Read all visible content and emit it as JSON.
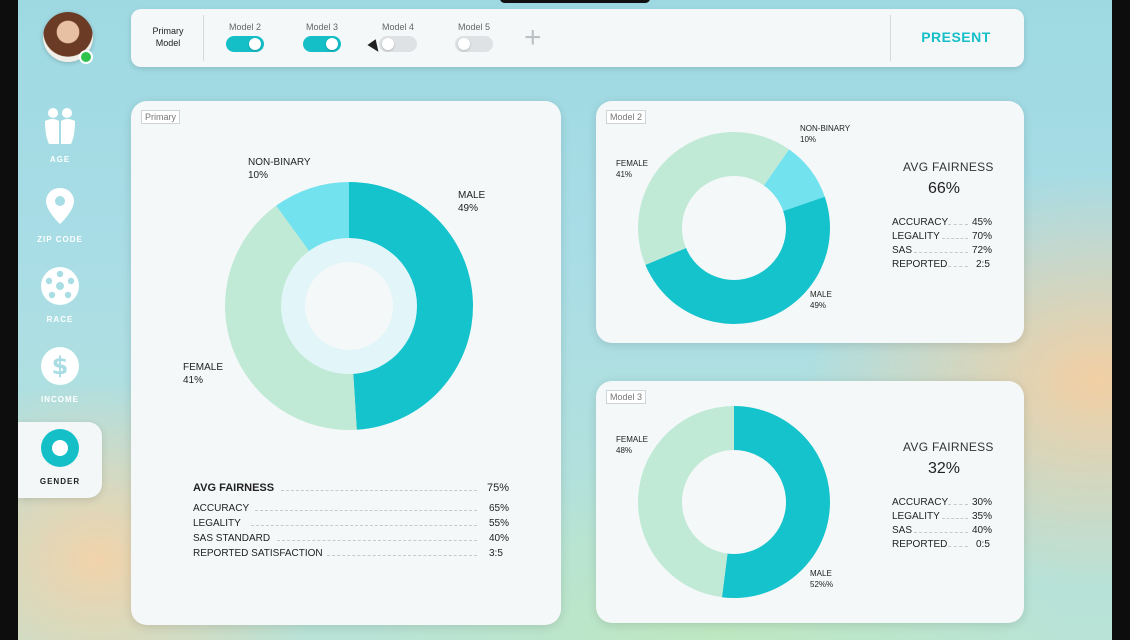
{
  "toolbar": {
    "primary_label": "Primary Model",
    "models": [
      {
        "label": "Model 2",
        "enabled": true
      },
      {
        "label": "Model 3",
        "enabled": true
      },
      {
        "label": "Model 4",
        "enabled": false
      },
      {
        "label": "Model 5",
        "enabled": false
      }
    ],
    "add_icon": "plus-icon",
    "present_label": "PRESENT"
  },
  "sidebar": {
    "items": [
      {
        "label": "AGE",
        "icon": "people-icon"
      },
      {
        "label": "ZIP CODE",
        "icon": "map-pin-icon"
      },
      {
        "label": "RACE",
        "icon": "group-circle-icon"
      },
      {
        "label": "INCOME",
        "icon": "dollar-icon"
      },
      {
        "label": "GENDER",
        "icon": "ring-icon",
        "active": true
      }
    ]
  },
  "colors": {
    "male": "#14c3cc",
    "female": "#c1ead6",
    "nonbinary": "#72e2ee",
    "accent": "#15bfc8"
  },
  "primary": {
    "tag": "Primary",
    "labels": {
      "male": "MALE",
      "male_pct": "49%",
      "female": "FEMALE",
      "female_pct": "41%",
      "nonbinary": "NON-BINARY",
      "nonbinary_pct": "10%"
    },
    "avg_label": "AVG FAIRNESS",
    "avg_value": "75%",
    "metrics": [
      {
        "label": "ACCURACY",
        "value": "65%"
      },
      {
        "label": "LEGALITY",
        "value": "55%"
      },
      {
        "label": "SAS STANDARD",
        "value": "40%"
      },
      {
        "label": "REPORTED SATISFACTION",
        "value": "3:5"
      }
    ]
  },
  "model2": {
    "tag": "Model 2",
    "labels": {
      "male": "MALE",
      "male_pct": "49%",
      "female": "FEMALE",
      "female_pct": "41%",
      "nonbinary": "NON-BINARY",
      "nonbinary_pct": "10%"
    },
    "avg_label": "AVG FAIRNESS",
    "avg_value": "66%",
    "metrics": [
      {
        "label": "ACCURACY",
        "value": "45%"
      },
      {
        "label": "LEGALITY",
        "value": "70%"
      },
      {
        "label": "SAS",
        "value": "72%"
      },
      {
        "label": "REPORTED",
        "value": "2:5"
      }
    ]
  },
  "model3": {
    "tag": "Model 3",
    "labels": {
      "male": "MALE",
      "male_pct": "52%%",
      "female": "FEMALE",
      "female_pct": "48%"
    },
    "avg_label": "AVG FAIRNESS",
    "avg_value": "32%",
    "metrics": [
      {
        "label": "ACCURACY",
        "value": "30%"
      },
      {
        "label": "LEGALITY",
        "value": "35%"
      },
      {
        "label": "SAS",
        "value": "40%"
      },
      {
        "label": "REPORTED",
        "value": "0:5"
      }
    ]
  }
}
